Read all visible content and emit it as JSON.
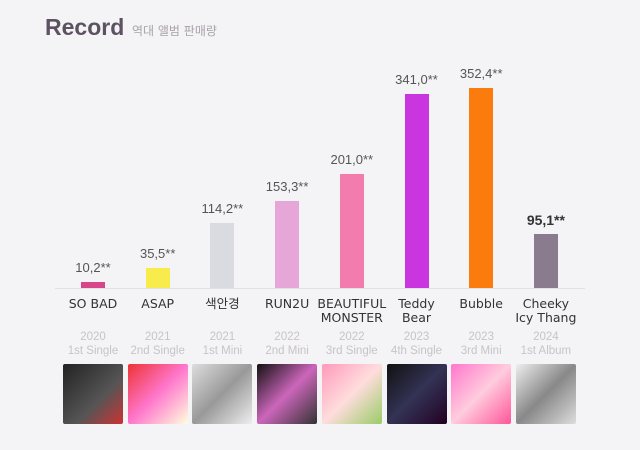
{
  "chart_data": {
    "type": "bar",
    "title": "Record",
    "subtitle": "역대 앨범 판매량",
    "categories": [
      "SO BAD",
      "ASAP",
      "색안경",
      "RUN2U",
      "BEAUTIFUL\nMONSTER",
      "Teddy\nBear",
      "Bubble",
      "Cheeky\nIcy Thang"
    ],
    "values": [
      10.2,
      35.5,
      114.2,
      153.3,
      201.0,
      341.0,
      352.4,
      95.1
    ],
    "value_labels": [
      "10,2**",
      "35,5**",
      "114,2**",
      "153,3**",
      "201,0**",
      "341,0**",
      "352,4**",
      "95,1**"
    ],
    "years": [
      "2020",
      "2021",
      "2021",
      "2022",
      "2022",
      "2023",
      "2023",
      "2024"
    ],
    "releases": [
      "1st Single",
      "2nd Single",
      "1st Mini",
      "2nd Mini",
      "3rd Single",
      "4th Single",
      "3rd Mini",
      "1st Album"
    ],
    "colors": [
      "#d8468a",
      "#f8ec4c",
      "#d9dbe0",
      "#e6a6d8",
      "#f27cad",
      "#c936e0",
      "#fb7c0c",
      "#8a7b8f"
    ]
  }
}
